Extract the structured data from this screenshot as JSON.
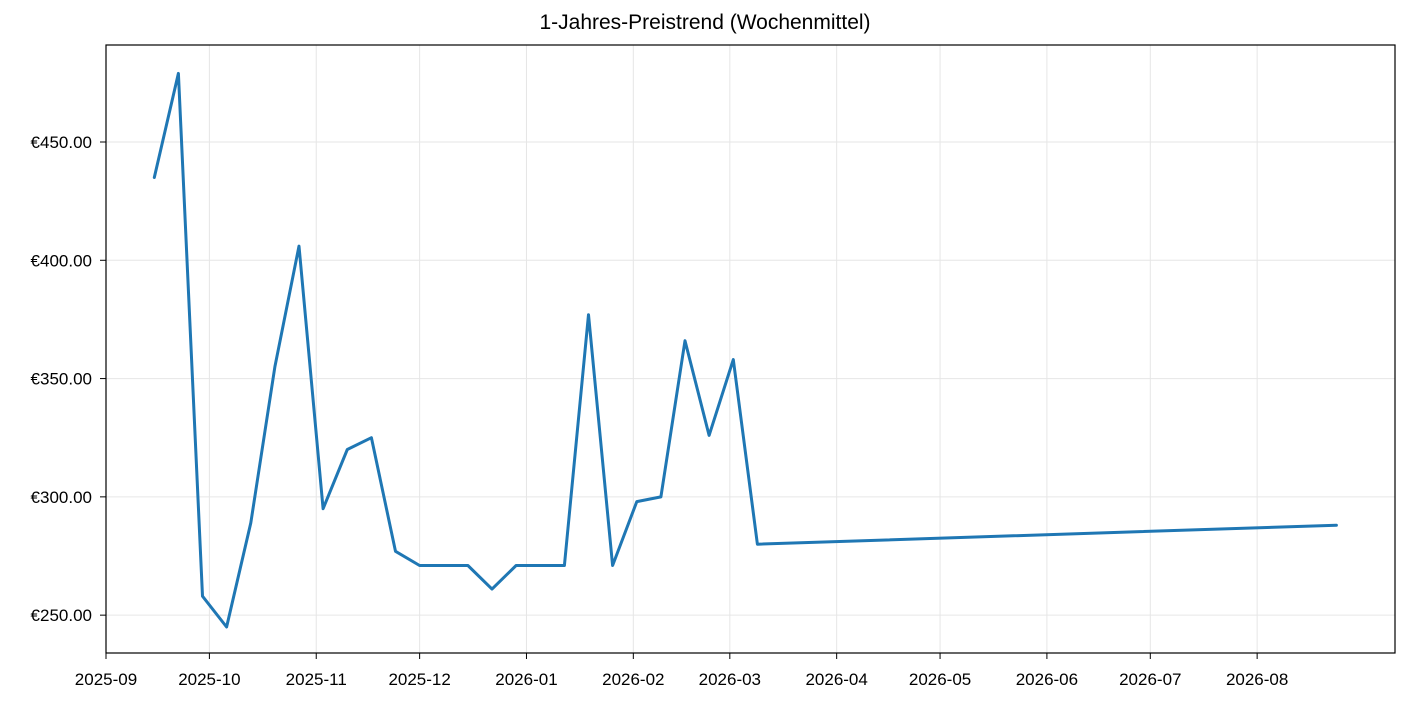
{
  "chart_data": {
    "type": "line",
    "title": "1-Jahres-Preistrend (Wochenmittel)",
    "xlabel": "",
    "ylabel": "",
    "x_axis_type": "date",
    "xlim": [
      "2025-09-01",
      "2026-09-10"
    ],
    "ylim": [
      234,
      491
    ],
    "x_ticks": [
      "2025-09",
      "2025-10",
      "2025-11",
      "2025-12",
      "2026-01",
      "2026-02",
      "2026-03",
      "2026-04",
      "2026-05",
      "2026-06",
      "2026-07",
      "2026-08"
    ],
    "y_ticks": [
      "€250.00",
      "€300.00",
      "€350.00",
      "€400.00",
      "€450.00"
    ],
    "y_tick_values": [
      250,
      300,
      350,
      400,
      450
    ],
    "grid": true,
    "legend": "none",
    "series": [
      {
        "color": "#1f77b4",
        "x": [
          "2025-09-15",
          "2025-09-22",
          "2025-09-29",
          "2025-10-06",
          "2025-10-13",
          "2025-10-20",
          "2025-10-27",
          "2025-11-03",
          "2025-11-10",
          "2025-11-17",
          "2025-11-24",
          "2025-12-01",
          "2025-12-08",
          "2025-12-15",
          "2025-12-22",
          "2025-12-29",
          "2026-01-05",
          "2026-01-12",
          "2026-01-19",
          "2026-01-26",
          "2026-02-02",
          "2026-02-09",
          "2026-02-16",
          "2026-02-23",
          "2026-03-02",
          "2026-03-09",
          "2026-08-24"
        ],
        "values": [
          435,
          479,
          258,
          245,
          289,
          355,
          406,
          295,
          320,
          325,
          277,
          271,
          271,
          271,
          261,
          271,
          271,
          271,
          377,
          271,
          298,
          300,
          366,
          326,
          358,
          280,
          288
        ]
      }
    ]
  }
}
